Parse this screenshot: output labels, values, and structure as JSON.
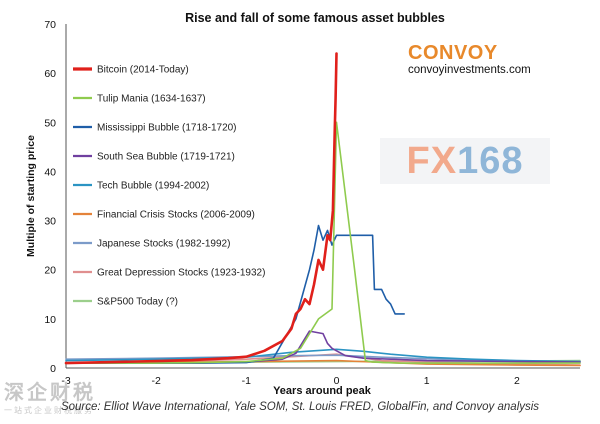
{
  "logo": {
    "brand": "CONVOY",
    "url": "convoyinvestments.com"
  },
  "fx_logo": {
    "letters": "FX",
    "digits": "168"
  },
  "watermark": {
    "main": "深企财税",
    "sub": "一站式企业财税服务"
  },
  "source": "Source: Elliot Wave International, Yale SOM, St. Louis FRED, GlobalFin, and Convoy analysis",
  "chart_data": {
    "type": "line",
    "title": "Rise and fall of some famous asset bubbles",
    "xlabel": "Years around peak",
    "ylabel": "Multiple of starting price",
    "xlim": [
      -3,
      2.7
    ],
    "ylim": [
      0,
      70
    ],
    "xticks": [
      "-3",
      "-2",
      "-1",
      "0",
      "1",
      "2"
    ],
    "yticks": [
      "0",
      "10",
      "20",
      "30",
      "40",
      "50",
      "60",
      "70"
    ],
    "grid": false,
    "legend": "top-left",
    "series": [
      {
        "name": "Bitcoin (2014-Today)",
        "color": "#e0201b",
        "width": 2.6,
        "x": [
          -3,
          -2.5,
          -2,
          -1.6,
          -1.2,
          -1.0,
          -0.8,
          -0.6,
          -0.5,
          -0.45,
          -0.4,
          -0.35,
          -0.3,
          -0.25,
          -0.2,
          -0.15,
          -0.1,
          -0.07,
          -0.04,
          -0.03,
          -0.02,
          -0.01,
          0
        ],
        "y": [
          1,
          1.2,
          1.4,
          1.6,
          2.0,
          2.3,
          3.5,
          5.5,
          8,
          11,
          12,
          14,
          13,
          17,
          22,
          20,
          27,
          26,
          32,
          40,
          48,
          55,
          64
        ]
      },
      {
        "name": "Tulip Mania (1634-1637)",
        "color": "#8fcb4e",
        "width": 1.6,
        "x": [
          -3,
          -2,
          -1.5,
          -1,
          -0.6,
          -0.4,
          -0.2,
          -0.05,
          0,
          0.2,
          0.32,
          0.4,
          0.7,
          1.0,
          1.5,
          2.0,
          2.7
        ],
        "y": [
          1,
          1,
          1.1,
          1.3,
          2,
          4,
          10,
          12,
          50,
          20,
          1.5,
          1.2,
          1,
          1,
          1,
          1,
          1
        ]
      },
      {
        "name": "Mississippi Bubble (1718-1720)",
        "color": "#1f5ea8",
        "width": 1.6,
        "x": [
          -3,
          -2,
          -1.5,
          -1,
          -0.7,
          -0.45,
          -0.3,
          -0.25,
          -0.2,
          -0.15,
          -0.1,
          -0.05,
          0,
          0.05,
          0.1,
          0.2,
          0.3,
          0.4,
          0.42,
          0.5,
          0.55,
          0.6,
          0.65,
          0.7,
          0.75
        ],
        "y": [
          1,
          1,
          1,
          1.1,
          2,
          10,
          20,
          24,
          29,
          26,
          28,
          25,
          27,
          27,
          27,
          27,
          27,
          27,
          16,
          16,
          14,
          13,
          11,
          11,
          11
        ]
      },
      {
        "name": "South Sea Bubble (1719-1721)",
        "color": "#7040a0",
        "width": 1.6,
        "x": [
          -3,
          -1.5,
          -1,
          -0.6,
          -0.45,
          -0.3,
          -0.15,
          -0.1,
          -0.05,
          0,
          0.1,
          0.3,
          1.0,
          2.0,
          2.7
        ],
        "y": [
          1,
          1,
          1.2,
          1.8,
          3,
          7.5,
          7,
          5,
          4,
          3.5,
          2.5,
          2,
          1.5,
          1.3,
          1.2
        ]
      },
      {
        "name": "Tech Bubble (1994-2002)",
        "color": "#2b94c3",
        "width": 1.6,
        "x": [
          -3,
          -2,
          -1,
          -0.5,
          0,
          0.3,
          0.6,
          1.0,
          1.5,
          2.0,
          2.7
        ],
        "y": [
          1.5,
          1.8,
          2.2,
          3.2,
          3.8,
          3.4,
          2.8,
          2.2,
          1.8,
          1.5,
          1.3
        ]
      },
      {
        "name": "Financial Crisis Stocks (2006-2009)",
        "color": "#e4833a",
        "width": 1.6,
        "x": [
          -3,
          -2,
          -1,
          0,
          1,
          2,
          2.7
        ],
        "y": [
          1,
          1.1,
          1.3,
          1.5,
          0.8,
          0.6,
          0.5
        ]
      },
      {
        "name": "Japanese Stocks (1982-1992)",
        "color": "#7c9bc9",
        "width": 1.6,
        "x": [
          -3,
          -2,
          -1,
          -0.5,
          0,
          0.5,
          1.0,
          1.5,
          2.0,
          2.7
        ],
        "y": [
          1.8,
          2.0,
          2.3,
          2.5,
          2.6,
          2.2,
          1.9,
          1.6,
          1.4,
          1.3
        ]
      },
      {
        "name": "Great Depression Stocks (1923-1932)",
        "color": "#e08f8f",
        "width": 1.6,
        "x": [
          -3,
          -2,
          -1,
          0,
          0.5,
          1.0,
          2.0,
          2.7
        ],
        "y": [
          1,
          1.2,
          1.8,
          2.8,
          1.5,
          1.2,
          0.8,
          0.6
        ]
      },
      {
        "name": "S&P500 Today (?)",
        "color": "#9ccf8c",
        "width": 1.6,
        "x": [
          -3,
          -2,
          -1,
          0,
          1,
          2,
          2.7
        ],
        "y": [
          1,
          1.1,
          1.2,
          1.3,
          1.4,
          1.4,
          1.5
        ]
      }
    ]
  }
}
